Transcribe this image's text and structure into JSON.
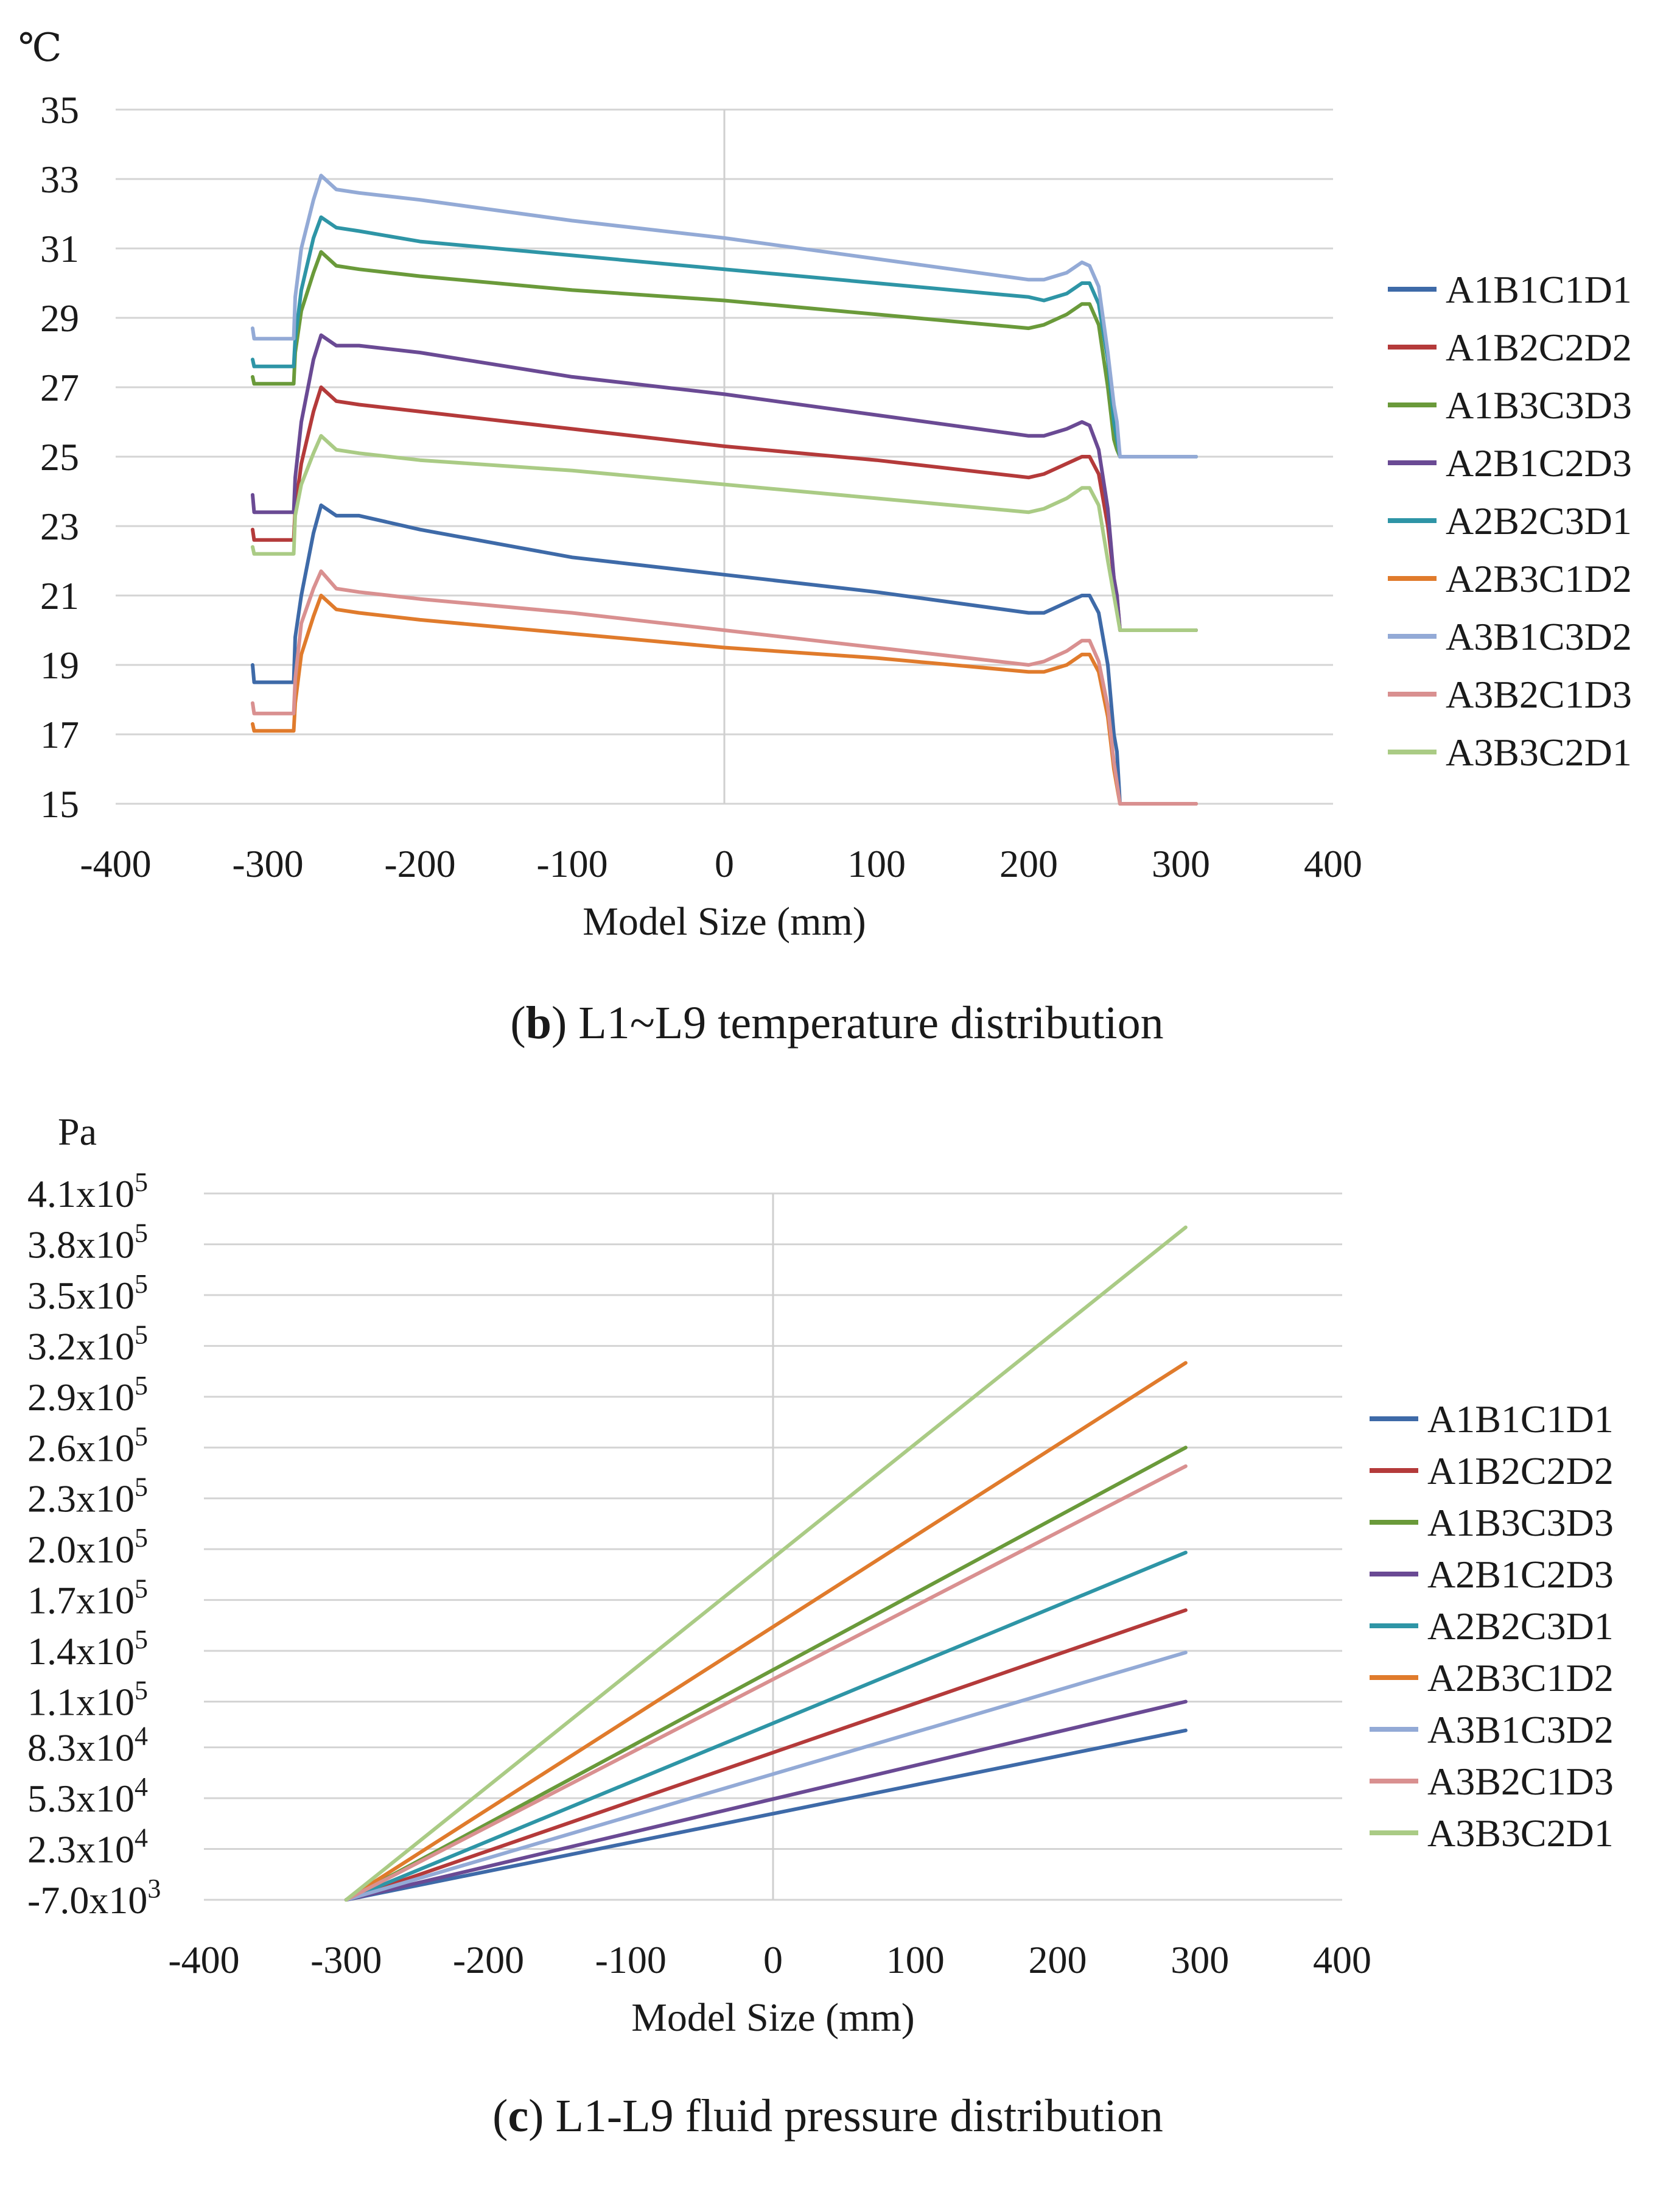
{
  "chart_data": [
    {
      "type": "line",
      "panel": "b",
      "unit_label": "℃",
      "xlabel": "Model Size (mm)",
      "caption_letter": "b",
      "caption_text": ") L1~L9 temperature distribution",
      "caption_open": "(",
      "xlim": [
        -400,
        400
      ],
      "ylim": [
        15,
        35
      ],
      "xticks": [
        -400,
        -300,
        -200,
        -100,
        0,
        100,
        200,
        300,
        400
      ],
      "xtick_labels": [
        "-400",
        "-300",
        "-200",
        "-100",
        "0",
        "100",
        "200",
        "300",
        "400"
      ],
      "yticks": [
        15,
        17,
        19,
        21,
        23,
        25,
        27,
        29,
        31,
        33,
        35
      ],
      "ytick_labels": [
        "15",
        "17",
        "19",
        "21",
        "23",
        "25",
        "27",
        "29",
        "31",
        "33",
        "35"
      ],
      "series": [
        {
          "name": "A1B1C1D1",
          "color": "#3E6AA8",
          "x": [
            -310,
            -309,
            -283,
            -282,
            -278,
            -270,
            -265,
            -255,
            -240,
            -200,
            -100,
            0,
            100,
            200,
            210,
            225,
            235,
            240,
            246,
            252,
            256,
            258,
            260,
            310
          ],
          "y": [
            19.0,
            18.5,
            18.5,
            19.8,
            21.0,
            22.8,
            23.6,
            23.3,
            23.3,
            22.9,
            22.1,
            21.6,
            21.1,
            20.5,
            20.5,
            20.8,
            21.0,
            21.0,
            20.5,
            19.0,
            17.0,
            16.5,
            15.0,
            15.0
          ]
        },
        {
          "name": "A1B2C2D2",
          "color": "#B43A3A",
          "x": [
            -310,
            -309,
            -283,
            -282,
            -278,
            -270,
            -265,
            -255,
            -240,
            -200,
            -100,
            0,
            100,
            200,
            210,
            225,
            235,
            240,
            246,
            252,
            256,
            258,
            260,
            310
          ],
          "y": [
            22.9,
            22.6,
            22.6,
            23.5,
            24.8,
            26.3,
            27.0,
            26.6,
            26.5,
            26.3,
            25.8,
            25.3,
            24.9,
            24.4,
            24.5,
            24.8,
            25.0,
            25.0,
            24.5,
            23.0,
            21.5,
            21.0,
            20.0,
            20.0
          ]
        },
        {
          "name": "A1B3C3D3",
          "color": "#6A9A3A",
          "x": [
            -310,
            -309,
            -283,
            -282,
            -278,
            -270,
            -265,
            -255,
            -240,
            -200,
            -100,
            0,
            100,
            200,
            210,
            225,
            235,
            240,
            246,
            252,
            256,
            258,
            260,
            310
          ],
          "y": [
            27.3,
            27.1,
            27.1,
            28.0,
            29.2,
            30.3,
            30.9,
            30.5,
            30.4,
            30.2,
            29.8,
            29.5,
            29.1,
            28.7,
            28.8,
            29.1,
            29.4,
            29.4,
            28.8,
            27.0,
            25.5,
            25.2,
            25.0,
            25.0
          ]
        },
        {
          "name": "A2B1C2D3",
          "color": "#6A4A94",
          "x": [
            -310,
            -309,
            -283,
            -282,
            -278,
            -270,
            -265,
            -255,
            -240,
            -200,
            -100,
            0,
            100,
            200,
            210,
            225,
            235,
            240,
            246,
            252,
            256,
            258,
            260,
            310
          ],
          "y": [
            23.9,
            23.4,
            23.4,
            24.4,
            26.0,
            27.8,
            28.5,
            28.2,
            28.2,
            28.0,
            27.3,
            26.8,
            26.2,
            25.6,
            25.6,
            25.8,
            26.0,
            25.9,
            25.2,
            23.5,
            21.5,
            21.0,
            20.0,
            20.0
          ]
        },
        {
          "name": "A2B2C3D1",
          "color": "#2E95A6",
          "x": [
            -310,
            -309,
            -283,
            -282,
            -278,
            -270,
            -265,
            -255,
            -240,
            -200,
            -100,
            0,
            100,
            200,
            210,
            225,
            235,
            240,
            246,
            252,
            256,
            258,
            260,
            310
          ],
          "y": [
            27.8,
            27.6,
            27.6,
            28.4,
            29.8,
            31.3,
            31.9,
            31.6,
            31.5,
            31.2,
            30.8,
            30.4,
            30.0,
            29.6,
            29.5,
            29.7,
            30.0,
            30.0,
            29.4,
            27.8,
            26.0,
            25.5,
            25.0,
            25.0
          ]
        },
        {
          "name": "A2B3C1D2",
          "color": "#E07B2C",
          "x": [
            -310,
            -309,
            -283,
            -282,
            -278,
            -270,
            -265,
            -255,
            -240,
            -200,
            -100,
            0,
            100,
            200,
            210,
            225,
            235,
            240,
            246,
            252,
            256,
            258,
            260,
            310
          ],
          "y": [
            17.3,
            17.1,
            17.1,
            17.9,
            19.3,
            20.4,
            21.0,
            20.6,
            20.5,
            20.3,
            19.9,
            19.5,
            19.2,
            18.8,
            18.8,
            19.0,
            19.3,
            19.3,
            18.8,
            17.5,
            16.0,
            15.5,
            15.0,
            15.0
          ]
        },
        {
          "name": "A3B1C3D2",
          "color": "#93AAD6",
          "x": [
            -310,
            -309,
            -283,
            -282,
            -278,
            -270,
            -265,
            -255,
            -240,
            -200,
            -100,
            0,
            100,
            200,
            210,
            225,
            235,
            240,
            246,
            252,
            256,
            258,
            260,
            310
          ],
          "y": [
            28.7,
            28.4,
            28.4,
            29.6,
            31.0,
            32.4,
            33.1,
            32.7,
            32.6,
            32.4,
            31.8,
            31.3,
            30.7,
            30.1,
            30.1,
            30.3,
            30.6,
            30.5,
            29.9,
            28.0,
            26.5,
            26.0,
            25.0,
            25.0
          ]
        },
        {
          "name": "A3B2C1D3",
          "color": "#D99090",
          "x": [
            -310,
            -309,
            -283,
            -282,
            -278,
            -270,
            -265,
            -255,
            -240,
            -200,
            -100,
            0,
            100,
            200,
            210,
            225,
            235,
            240,
            246,
            252,
            256,
            258,
            260,
            310
          ],
          "y": [
            17.9,
            17.6,
            17.6,
            18.6,
            20.2,
            21.2,
            21.7,
            21.2,
            21.1,
            20.9,
            20.5,
            20.0,
            19.5,
            19.0,
            19.1,
            19.4,
            19.7,
            19.7,
            19.1,
            17.8,
            16.2,
            15.6,
            15.0,
            15.0
          ]
        },
        {
          "name": "A3B3C2D1",
          "color": "#AACB85",
          "x": [
            -310,
            -309,
            -283,
            -282,
            -278,
            -270,
            -265,
            -255,
            -240,
            -200,
            -100,
            0,
            100,
            200,
            210,
            225,
            235,
            240,
            246,
            252,
            256,
            258,
            260,
            310
          ],
          "y": [
            22.4,
            22.2,
            22.2,
            23.3,
            24.2,
            25.1,
            25.6,
            25.2,
            25.1,
            24.9,
            24.6,
            24.2,
            23.8,
            23.4,
            23.5,
            23.8,
            24.1,
            24.1,
            23.6,
            22.0,
            21.0,
            20.5,
            20.0,
            20.0
          ]
        }
      ]
    },
    {
      "type": "line",
      "panel": "c",
      "unit_label": "Pa",
      "xlabel": "Model Size (mm)",
      "caption_letter": "c",
      "caption_text": ") L1-L9 fluid pressure distribution",
      "caption_open": "(",
      "xlim": [
        -400,
        400
      ],
      "ylim": [
        -7000,
        410000
      ],
      "xticks": [
        -400,
        -300,
        -200,
        -100,
        0,
        100,
        200,
        300,
        400
      ],
      "xtick_labels": [
        "-400",
        "-300",
        "-200",
        "-100",
        "0",
        "100",
        "200",
        "300",
        "400"
      ],
      "yticks": [
        -7000,
        23000,
        53000,
        83000,
        110000,
        140000,
        170000,
        200000,
        230000,
        260000,
        290000,
        320000,
        350000,
        380000,
        410000
      ],
      "ytick_labels": [
        {
          "mant": "-7.0x10",
          "exp": "3"
        },
        {
          "mant": "2.3x10",
          "exp": "4"
        },
        {
          "mant": "5.3x10",
          "exp": "4"
        },
        {
          "mant": "8.3x10",
          "exp": "4"
        },
        {
          "mant": "1.1x10",
          "exp": "5"
        },
        {
          "mant": "1.4x10",
          "exp": "5"
        },
        {
          "mant": "1.7x10",
          "exp": "5"
        },
        {
          "mant": "2.0x10",
          "exp": "5"
        },
        {
          "mant": "2.3x10",
          "exp": "5"
        },
        {
          "mant": "2.6x10",
          "exp": "5"
        },
        {
          "mant": "2.9x10",
          "exp": "5"
        },
        {
          "mant": "3.2x10",
          "exp": "5"
        },
        {
          "mant": "3.5x10",
          "exp": "5"
        },
        {
          "mant": "3.8x10",
          "exp": "5"
        },
        {
          "mant": "4.1x10",
          "exp": "5"
        }
      ],
      "series": [
        {
          "name": "A1B1C1D1",
          "color": "#3E6AA8",
          "x": [
            -300,
            290
          ],
          "y": [
            -7000,
            93000
          ]
        },
        {
          "name": "A1B2C2D2",
          "color": "#B43A3A",
          "x": [
            -300,
            290
          ],
          "y": [
            -7000,
            164000
          ]
        },
        {
          "name": "A1B3C3D3",
          "color": "#6A9A3A",
          "x": [
            -300,
            290
          ],
          "y": [
            -7000,
            260000
          ]
        },
        {
          "name": "A2B1C2D3",
          "color": "#6A4A94",
          "x": [
            -300,
            290
          ],
          "y": [
            -7000,
            110000
          ]
        },
        {
          "name": "A2B2C3D1",
          "color": "#2E95A6",
          "x": [
            -300,
            290
          ],
          "y": [
            -7000,
            198000
          ]
        },
        {
          "name": "A2B3C1D2",
          "color": "#E07B2C",
          "x": [
            -300,
            290
          ],
          "y": [
            -7000,
            310000
          ]
        },
        {
          "name": "A3B1C3D2",
          "color": "#93AAD6",
          "x": [
            -300,
            290
          ],
          "y": [
            -7000,
            139000
          ]
        },
        {
          "name": "A3B2C1D3",
          "color": "#D99090",
          "x": [
            -300,
            290
          ],
          "y": [
            -7000,
            249000
          ]
        },
        {
          "name": "A3B3C2D1",
          "color": "#AACB85",
          "x": [
            -300,
            290
          ],
          "y": [
            -7000,
            390000
          ]
        }
      ]
    }
  ]
}
